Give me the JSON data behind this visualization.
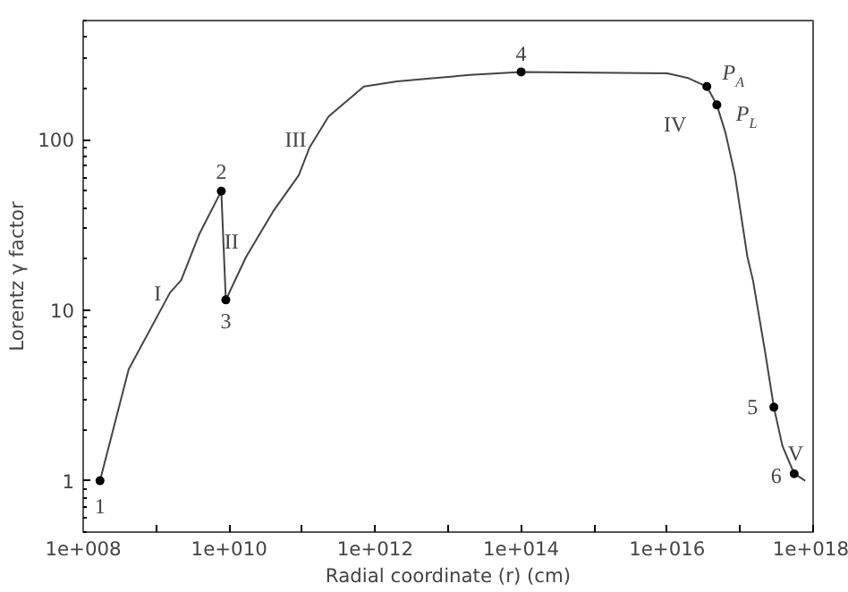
{
  "chart_data": {
    "type": "line",
    "xlabel": "Radial coordinate (r) (cm)",
    "ylabel": "Lorentz γ factor",
    "log": "xy",
    "grid": false,
    "line_style": "solid",
    "xlim": [
      100000000.0,
      1e+18
    ],
    "ylim": [
      0.5,
      500
    ],
    "xticks": [
      {
        "value": 100000000.0,
        "label": "1e+008"
      },
      {
        "value": 1000000000.0,
        "label": null
      },
      {
        "value": 10000000000.0,
        "label": "1e+010"
      },
      {
        "value": 100000000000.0,
        "label": null
      },
      {
        "value": 1000000000000.0,
        "label": "1e+012"
      },
      {
        "value": 10000000000000.0,
        "label": null
      },
      {
        "value": 100000000000000.0,
        "label": "1e+014"
      },
      {
        "value": 1000000000000000.0,
        "label": null
      },
      {
        "value": 1e+16,
        "label": "1e+016"
      },
      {
        "value": 1e+17,
        "label": null
      },
      {
        "value": 1e+18,
        "label": "1e+018"
      }
    ],
    "yticks": [
      1,
      10,
      100
    ],
    "series": [
      {
        "marker": "none",
        "color": "#444444",
        "x": [
          170000000.0,
          420000000.0,
          1550000000.0,
          2200000000.0,
          3900000000.0,
          7800000000.0,
          9000000000.0,
          17000000000.0,
          40000000000.0,
          90000000000.0,
          126000000000.0,
          230000000000.0,
          700000000000.0,
          2000000000000.0,
          6600000000000.0,
          20000000000000.0,
          100000000000000.0,
          1e+16,
          1.95e+16,
          3.5e+16,
          4.8e+16,
          6.3e+16,
          8.5e+16,
          1.26e+17,
          1.5e+17,
          2.2e+17,
          2.9e+17,
          3.8e+17,
          5.5e+17,
          7.8e+17
        ],
        "values": [
          1,
          4.5,
          12.7,
          15,
          28,
          50,
          11.5,
          20.5,
          38,
          62,
          90,
          137,
          205,
          220,
          230,
          240,
          250,
          245,
          230,
          205,
          160,
          110,
          62,
          20.5,
          15,
          5.7,
          2.7,
          1.6,
          1.1,
          1.0
        ]
      },
      {
        "type": "scatter",
        "marker": "circle",
        "color": "#000000",
        "x": [
          170000000.0,
          7800000000.0,
          9000000000.0,
          100000000000000.0,
          3.5e+16,
          4.8e+16,
          2.9e+17,
          5.5e+17
        ],
        "values": [
          1,
          50,
          11.5,
          250,
          205,
          160,
          2.7,
          1.1
        ]
      }
    ],
    "annotations": [
      {
        "text": "1",
        "x": 170000000.0,
        "y": 1
      },
      {
        "text": "2",
        "x": 7800000000.0,
        "y": 50
      },
      {
        "text": "3",
        "x": 9000000000.0,
        "y": 11.5
      },
      {
        "text": "4",
        "x": 100000000000000.0,
        "y": 250
      },
      {
        "text": "P$_{A}$",
        "x": 3.5e+16,
        "y": 205
      },
      {
        "text": "P$_{L}$",
        "x": 4.8e+16,
        "y": 160
      },
      {
        "text": "5",
        "x": 2.9e+17,
        "y": 2.7
      },
      {
        "text": "6",
        "x": 5.5e+17,
        "y": 1.1
      },
      "I",
      "II",
      "III",
      "IV",
      "V"
    ]
  }
}
